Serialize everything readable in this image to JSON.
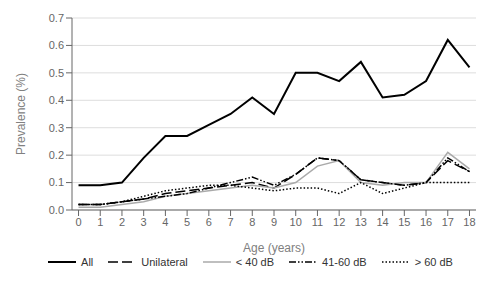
{
  "chart_data": {
    "type": "line",
    "xlabel": "Age (years)",
    "ylabel": "Prevalence (%)",
    "x": [
      0,
      1,
      2,
      3,
      4,
      5,
      6,
      7,
      8,
      9,
      10,
      11,
      12,
      13,
      14,
      15,
      16,
      17,
      18
    ],
    "series": [
      {
        "name": "All",
        "color": "#000000",
        "line_style": "solid",
        "values": [
          0.09,
          0.09,
          0.1,
          0.19,
          0.27,
          0.27,
          0.31,
          0.35,
          0.41,
          0.35,
          0.5,
          0.5,
          0.47,
          0.54,
          0.41,
          0.42,
          0.47,
          0.62,
          0.52
        ]
      },
      {
        "name": "Unilateral",
        "color": "#000000",
        "line_style": "dashed",
        "values": [
          0.02,
          0.02,
          0.03,
          0.04,
          0.06,
          0.07,
          0.08,
          0.09,
          0.1,
          0.08,
          0.13,
          0.19,
          0.18,
          0.11,
          0.1,
          0.09,
          0.1,
          0.18,
          0.14
        ]
      },
      {
        "name": "< 40 dB",
        "color": "#aaaaaa",
        "line_style": "solid",
        "values": [
          0.01,
          0.01,
          0.02,
          0.03,
          0.05,
          0.06,
          0.07,
          0.08,
          0.09,
          0.08,
          0.1,
          0.16,
          0.18,
          0.1,
          0.09,
          0.1,
          0.1,
          0.21,
          0.15
        ]
      },
      {
        "name": "41-60 dB",
        "color": "#000000",
        "line_style": "dashdotdot",
        "values": [
          0.02,
          0.02,
          0.03,
          0.04,
          0.05,
          0.06,
          0.08,
          0.1,
          0.12,
          0.09,
          0.13,
          0.19,
          0.18,
          0.11,
          0.1,
          0.09,
          0.1,
          0.19,
          0.14
        ]
      },
      {
        "name": "> 60 dB",
        "color": "#000000",
        "line_style": "dotted",
        "values": [
          0.02,
          0.02,
          0.03,
          0.05,
          0.07,
          0.08,
          0.09,
          0.09,
          0.08,
          0.07,
          0.08,
          0.08,
          0.06,
          0.1,
          0.06,
          0.08,
          0.1,
          0.1,
          0.1
        ]
      }
    ],
    "xlim": [
      -0.3,
      18.3
    ],
    "xticks": [
      0,
      1,
      2,
      3,
      4,
      5,
      6,
      7,
      8,
      9,
      10,
      11,
      12,
      13,
      14,
      15,
      16,
      17,
      18
    ],
    "ylim": [
      0,
      0.7
    ],
    "yticks": [
      {
        "value": 0,
        "label": "0.0"
      },
      0.1,
      0.2,
      0.3,
      0.4,
      0.5,
      0.6,
      0.7
    ],
    "grid": true,
    "legend": "bottom"
  }
}
